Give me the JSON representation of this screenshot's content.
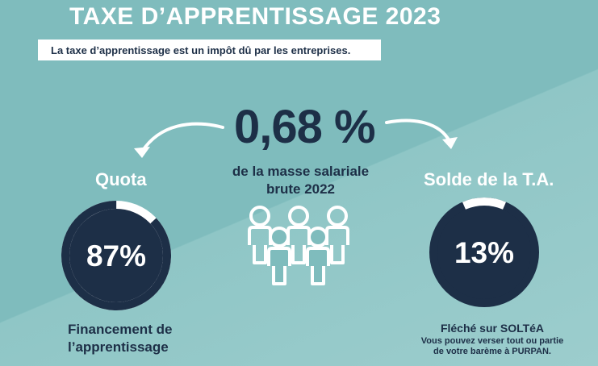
{
  "header": {
    "title": "TAXE D’APPRENTISSAGE 2023",
    "subtitle": "La taxe d’apprentissage est un impôt dû par les entreprises."
  },
  "center": {
    "rate": "0,68 %",
    "base_line1": "de la masse salariale",
    "base_line2": "brute 2022",
    "icon": "people-group-icon"
  },
  "left": {
    "label": "Quota",
    "percent_text": "87%",
    "percent_value": 87,
    "desc_line1": "Financement de",
    "desc_line2": "l’apprentissage"
  },
  "right": {
    "label": "Solde de la T.A.",
    "percent_text": "13%",
    "percent_value": 13,
    "desc_title": "Fléché sur SOLTéA",
    "desc_line1": "Vous pouvez verser tout ou partie",
    "desc_line2": "de votre barème à PURPAN."
  },
  "colors": {
    "background": "#7fbcbd",
    "navy": "#1d2f47",
    "white": "#ffffff"
  }
}
